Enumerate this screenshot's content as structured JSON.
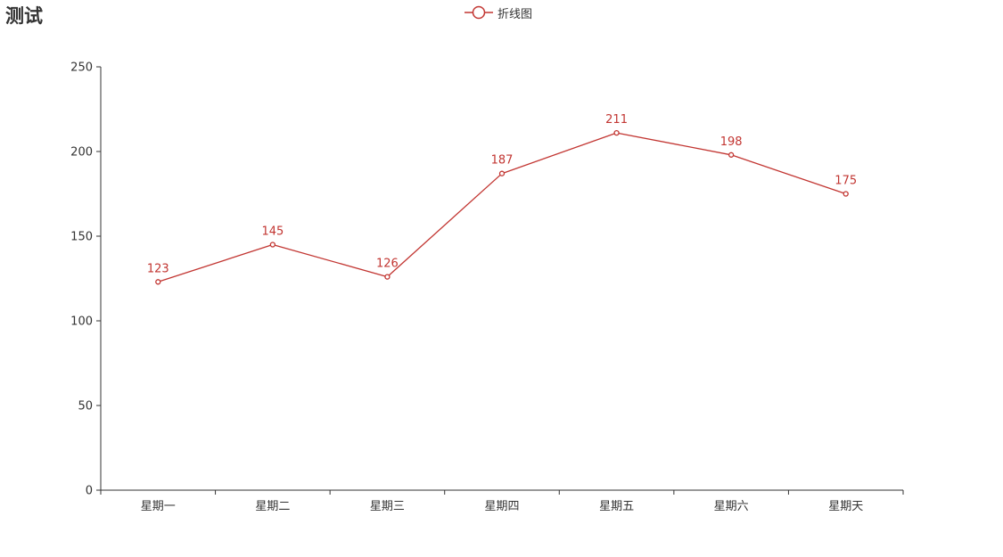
{
  "chart_data": {
    "type": "line",
    "title": "测试",
    "categories": [
      "星期一",
      "星期二",
      "星期三",
      "星期四",
      "星期五",
      "星期六",
      "星期天"
    ],
    "series": [
      {
        "name": "折线图",
        "values": [
          123,
          145,
          126,
          187,
          211,
          198,
          175
        ]
      }
    ],
    "ylim": [
      0,
      250
    ],
    "yticks": [
      0,
      50,
      100,
      150,
      200,
      250
    ],
    "grid": false,
    "legend_position": "top-center",
    "show_data_labels": true,
    "series_color": "#c23531",
    "axis_color": "#333333"
  }
}
